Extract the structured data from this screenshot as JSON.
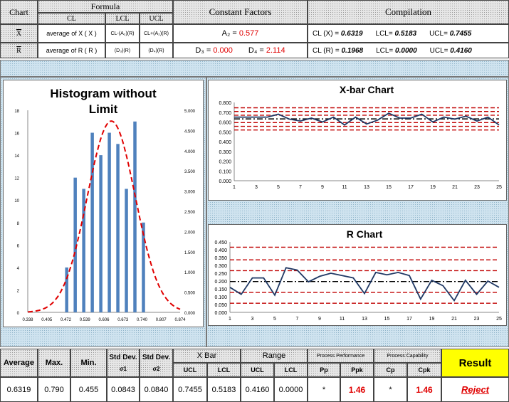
{
  "header": {
    "chart_label": "Chart",
    "formula_label": "Formula",
    "cl_label": "CL",
    "lcl_label": "LCL",
    "ucl_label": "UCL",
    "constant_factors_label": "Constant Factors",
    "compilation_label": "Compilation"
  },
  "row_xbar": {
    "chart": "X",
    "cl_formula": "average of X ( X )",
    "lcl_formula": "CL-(A₂)(R)",
    "ucl_formula": "CL+(A₂)(R)",
    "a2_label": "A₂ =",
    "a2_value": "0.577",
    "cl_label": "CL (X) =",
    "cl_value": "0.6319",
    "lcl_label": "LCL=",
    "lcl_value": "0.5183",
    "ucl_label": "UCL=",
    "ucl_value": "0.7455"
  },
  "row_r": {
    "chart": "R",
    "cl_formula": "average of R ( R )",
    "lcl_formula": "(D₃)(R)",
    "ucl_formula": "(D₄)(R)",
    "d3_label": "D₃ =",
    "d3_value": "0.000",
    "d4_label": "D₄ =",
    "d4_value": "2.114",
    "cl_label": "CL (R) =",
    "cl_value": "0.1968",
    "lcl_label": "LCL=",
    "lcl_value": "0.0000",
    "ucl_label": "UCL=",
    "ucl_value": "0.4160"
  },
  "stats": {
    "headers": {
      "average": "Average",
      "max": "Max.",
      "min": "Min.",
      "sd1": "Std Dev.",
      "sd1_sub": "σ1",
      "sd2": "Std Dev.",
      "sd2_sub": "σ2",
      "xbar": "X  Bar",
      "range": "Range",
      "ucl": "UCL",
      "lcl": "LCL",
      "ucl2": "UCL",
      "lcl2": "LCL",
      "perf": "Process Performance",
      "cap": "Process Capability",
      "pp": "Pp",
      "ppk": "Ppk",
      "cp": "Cp",
      "cpk": "Cpk",
      "result": "Result"
    },
    "values": {
      "average": "0.6319",
      "max": "0.790",
      "min": "0.455",
      "sd1": "0.0843",
      "sd2": "0.0840",
      "xbar_ucl": "0.7455",
      "xbar_lcl": "0.5183",
      "r_ucl": "0.4160",
      "r_lcl": "0.0000",
      "pp": "*",
      "ppk": "1.46",
      "cp": "*",
      "cpk": "1.46",
      "result": "Reject"
    }
  },
  "colors": {
    "result_bg": "#ffff00",
    "reject": "#e00000",
    "bar": "#4f81bd",
    "line": "#1f3864",
    "limit": "#c00000",
    "curve": "#e00000"
  },
  "chart_data": [
    {
      "type": "bar",
      "title": "Histogram without Limit",
      "categories": [
        "0.338",
        "0.405",
        "0.472",
        "0.539",
        "0.606",
        "0.673",
        "0.740",
        "0.807",
        "0.874"
      ],
      "bins": [
        0.475,
        0.49,
        0.505,
        0.52,
        0.535,
        0.55,
        0.565,
        0.58,
        0.595,
        0.61,
        0.625,
        0.64,
        0.655,
        0.67,
        0.685,
        0.7,
        0.715,
        0.73,
        0.745,
        0.76,
        0.775
      ],
      "values": [
        4,
        0,
        12,
        0,
        11,
        0,
        16,
        0,
        14,
        0,
        16,
        0,
        15,
        0,
        11,
        0,
        17,
        0,
        8,
        0,
        0
      ],
      "ylim_left": [
        0,
        18
      ],
      "yticks_left": [
        0,
        2,
        4,
        6,
        8,
        10,
        12,
        14,
        16,
        18
      ],
      "ylim_right": [
        0,
        5
      ],
      "yticks_right": [
        "0.000",
        "0.500",
        "1.000",
        "1.500",
        "2.000",
        "2.500",
        "3.000",
        "3.500",
        "4.000",
        "4.500",
        "5.000"
      ],
      "xlim": [
        0.338,
        0.874
      ],
      "curve": {
        "mean": 0.6319,
        "sd": 0.0843
      }
    },
    {
      "type": "line",
      "title": "X-bar Chart",
      "x": [
        1,
        2,
        3,
        4,
        5,
        6,
        7,
        8,
        9,
        10,
        11,
        12,
        13,
        14,
        15,
        16,
        17,
        18,
        19,
        20,
        21,
        22,
        23,
        24,
        25
      ],
      "values": [
        0.65,
        0.65,
        0.65,
        0.65,
        0.68,
        0.63,
        0.61,
        0.64,
        0.6,
        0.65,
        0.57,
        0.65,
        0.58,
        0.62,
        0.69,
        0.64,
        0.64,
        0.68,
        0.6,
        0.65,
        0.63,
        0.66,
        0.61,
        0.65,
        0.57
      ],
      "ylim": [
        0,
        0.8
      ],
      "yticks": [
        "0.000",
        "0.100",
        "0.200",
        "0.300",
        "0.400",
        "0.500",
        "0.600",
        "0.700",
        "0.800"
      ],
      "xticks": [
        1,
        3,
        5,
        7,
        9,
        11,
        13,
        15,
        17,
        19,
        21,
        23,
        25
      ],
      "cl": 0.6319,
      "limit_lines": [
        0.5183,
        0.5562,
        0.594,
        0.6698,
        0.7076,
        0.7455
      ]
    },
    {
      "type": "line",
      "title": "R Chart",
      "x": [
        1,
        2,
        3,
        4,
        5,
        6,
        7,
        8,
        9,
        10,
        11,
        12,
        13,
        14,
        15,
        16,
        17,
        18,
        19,
        20,
        21,
        22,
        23,
        24,
        25
      ],
      "values": [
        0.16,
        0.115,
        0.22,
        0.22,
        0.11,
        0.285,
        0.27,
        0.195,
        0.23,
        0.25,
        0.235,
        0.22,
        0.12,
        0.255,
        0.24,
        0.255,
        0.235,
        0.085,
        0.205,
        0.17,
        0.075,
        0.205,
        0.115,
        0.2,
        0.16
      ],
      "ylim": [
        0,
        0.45
      ],
      "yticks": [
        "0.000",
        "0.050",
        "0.100",
        "0.150",
        "0.200",
        "0.250",
        "0.300",
        "0.350",
        "0.400",
        "0.450"
      ],
      "xticks": [
        1,
        3,
        5,
        7,
        9,
        11,
        13,
        15,
        17,
        19,
        21,
        23,
        25
      ],
      "cl": 0.1968,
      "limit_lines": [
        0.0581,
        0.1274,
        0.2661,
        0.3354,
        0.416
      ]
    }
  ]
}
